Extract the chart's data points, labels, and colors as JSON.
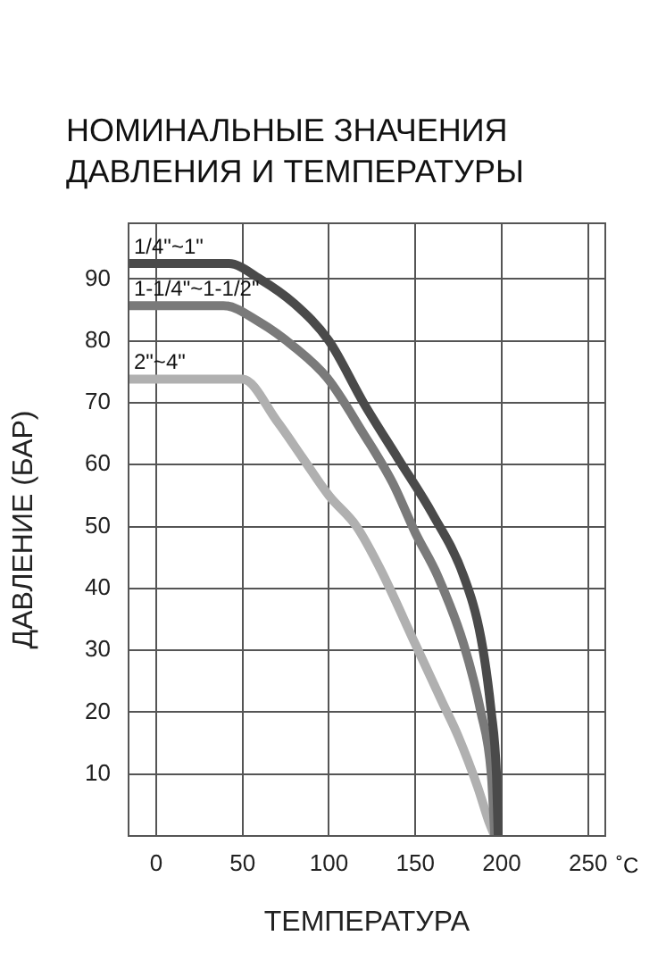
{
  "chart_data": {
    "type": "line",
    "title": "НОМИНАЛЬНЫЕ ЗНАЧЕНИЯ\nДАВЛЕНИЯ И ТЕМПЕРАТУРЫ",
    "xlabel": "ТЕМПЕРАТУРА",
    "ylabel": "ДАВЛЕНИЕ (БАР)",
    "annotations": [
      "˚C"
    ],
    "series": [
      {
        "name": "1/4\"~1\"",
        "color": "#4a4a4a",
        "x": [
          -16,
          42,
          60,
          80,
          100,
          120,
          140,
          160,
          178,
          188,
          194,
          197,
          198
        ],
        "values": [
          92.5,
          92.5,
          90,
          86,
          80,
          70,
          61,
          52,
          42,
          32,
          20,
          10,
          0
        ]
      },
      {
        "name": "1-1/4\"~1-1/2\"",
        "color": "#7a7a7a",
        "x": [
          -16,
          39,
          60,
          80,
          99,
          120,
          137,
          150,
          163,
          178,
          188,
          194,
          196
        ],
        "values": [
          85.7,
          85.7,
          83,
          79,
          74,
          65,
          57,
          49,
          42,
          31,
          20,
          10,
          0
        ]
      },
      {
        "name": "2\"~4\"",
        "color": "#b0b0b0",
        "x": [
          -16,
          50,
          70,
          85,
          100,
          116,
          130,
          150,
          165,
          175,
          186,
          193,
          196
        ],
        "values": [
          73.8,
          73.8,
          67,
          61,
          55,
          50,
          43,
          31,
          22,
          16,
          8,
          2,
          0
        ]
      }
    ],
    "xlim": [
      -16,
      260
    ],
    "ylim": [
      0,
      99
    ],
    "xticks": [
      0,
      50,
      100,
      150,
      200,
      250
    ],
    "yticks": [
      10,
      20,
      30,
      40,
      50,
      60,
      70,
      80,
      90
    ],
    "grid": true,
    "legend": false,
    "marker": "none",
    "line_style": "solid"
  }
}
